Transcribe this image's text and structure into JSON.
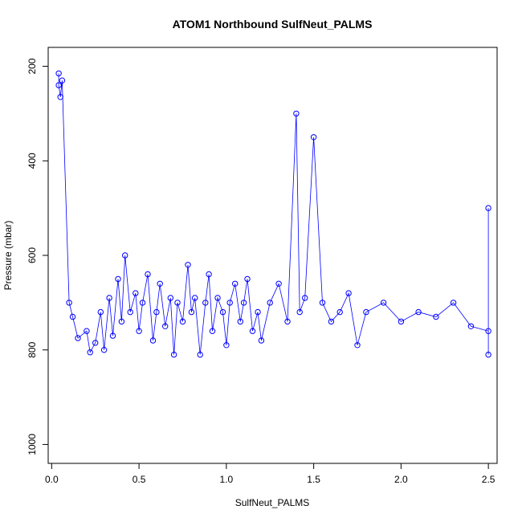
{
  "chart_data": {
    "type": "scatter",
    "title": "ATOM1 Northbound SulfNeut_PALMS",
    "xlabel": "SulfNeut_PALMS",
    "ylabel": "Pressure (mbar)",
    "xlim": [
      -0.02,
      2.55
    ],
    "ylim": [
      1040,
      160
    ],
    "y_reversed": true,
    "xticks": [
      0.0,
      0.5,
      1.0,
      1.5,
      2.0,
      2.5
    ],
    "xtick_labels": [
      "0.0",
      "0.5",
      "1.0",
      "1.5",
      "2.0",
      "2.5"
    ],
    "yticks": [
      200,
      400,
      600,
      800,
      1000
    ],
    "ytick_labels": [
      "200",
      "400",
      "600",
      "800",
      "1000"
    ],
    "grid": false,
    "marker": "open-circle",
    "connect_points": true,
    "color": "#0000ff",
    "series": [
      {
        "x": [
          0.04,
          0.04,
          0.05,
          0.06,
          0.1,
          0.12,
          0.15,
          0.2,
          0.22,
          0.25,
          0.28,
          0.3,
          0.33,
          0.35,
          0.38,
          0.4,
          0.42,
          0.45,
          0.48,
          0.5,
          0.52,
          0.55,
          0.58,
          0.6,
          0.62,
          0.65,
          0.68,
          0.7,
          0.72,
          0.75,
          0.78,
          0.8,
          0.82,
          0.85,
          0.88,
          0.9,
          0.92,
          0.95,
          0.98,
          1.0,
          1.02,
          1.05,
          1.08,
          1.1,
          1.12,
          1.15,
          1.18,
          1.2,
          1.25,
          1.3,
          1.35,
          1.4,
          1.42,
          1.45,
          1.5,
          1.55,
          1.6,
          1.65,
          1.7,
          1.75,
          1.8,
          1.9,
          2.0,
          2.1,
          2.2,
          2.3,
          2.4,
          2.5,
          2.5,
          2.5
        ],
        "y": [
          215,
          240,
          265,
          230,
          700,
          730,
          775,
          760,
          805,
          785,
          720,
          800,
          690,
          770,
          650,
          740,
          600,
          720,
          680,
          760,
          700,
          640,
          780,
          720,
          660,
          750,
          690,
          810,
          700,
          740,
          620,
          720,
          690,
          810,
          700,
          640,
          760,
          690,
          720,
          790,
          700,
          660,
          740,
          700,
          650,
          760,
          720,
          780,
          700,
          660,
          740,
          300,
          720,
          690,
          350,
          700,
          740,
          720,
          680,
          790,
          720,
          700,
          740,
          720,
          730,
          700,
          750,
          760,
          500,
          810
        ]
      }
    ]
  }
}
